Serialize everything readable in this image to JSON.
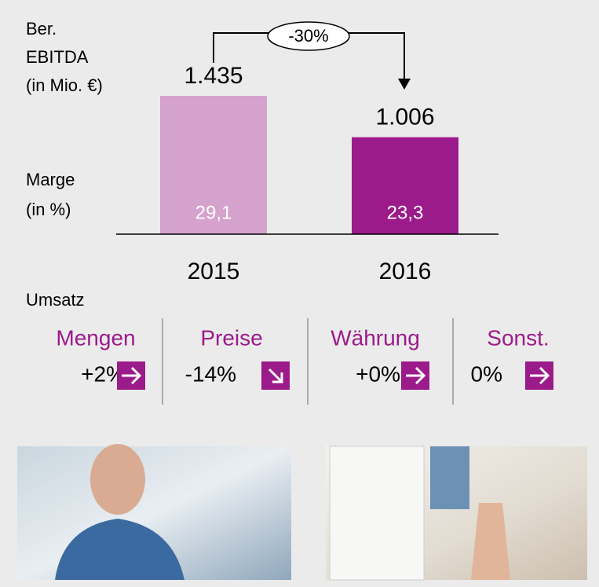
{
  "chart_data": {
    "type": "bar",
    "y_label_lines": [
      "Ber.",
      "EBITDA",
      "(in Mio. €)"
    ],
    "margin_label_lines": [
      "Marge",
      "(in %)"
    ],
    "categories": [
      "2015",
      "2016"
    ],
    "values": [
      1435,
      1006
    ],
    "value_labels": [
      "1.435",
      "1.006"
    ],
    "colors": [
      "#d4a2cd",
      "#9c1b8a"
    ],
    "margin": {
      "values": [
        29.1,
        23.3
      ],
      "value_labels": [
        "29,1",
        "23,3"
      ]
    },
    "annotation": "-30%"
  },
  "umsatz": {
    "title": "Umsatz",
    "items": [
      {
        "name": "Mengen",
        "change": "+2%",
        "direction": "right"
      },
      {
        "name": "Preise",
        "change": "-14%",
        "direction": "down-right"
      },
      {
        "name": "Währung",
        "change": "+0%",
        "direction": "right"
      },
      {
        "name": "Sonst.",
        "change": "0%",
        "direction": "right"
      }
    ]
  }
}
